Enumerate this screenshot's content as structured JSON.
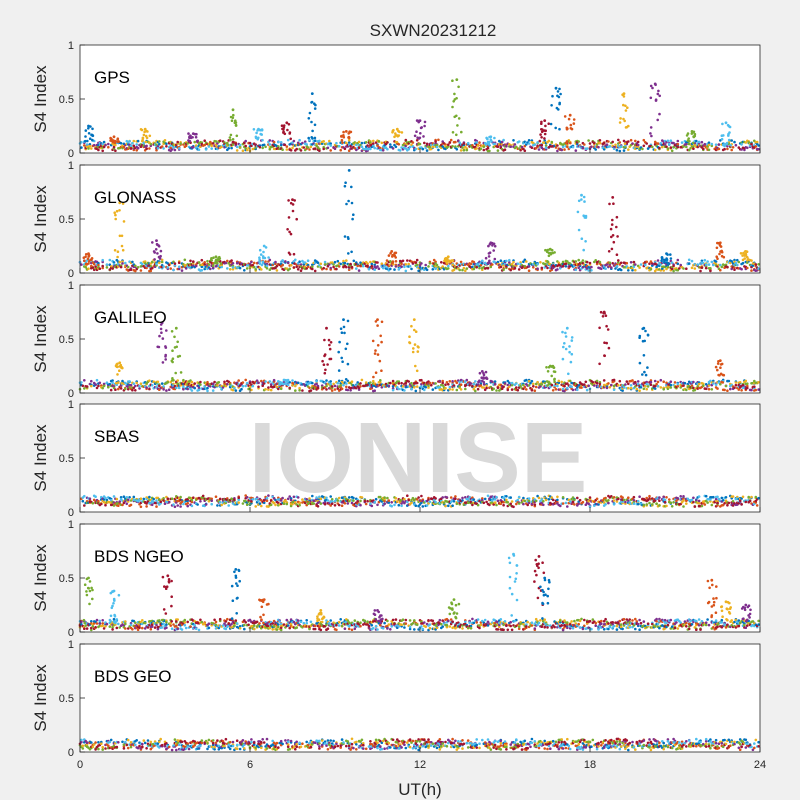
{
  "figure": {
    "title": "SXWN20231212",
    "xlabel": "UT(h)",
    "watermark": "IONISE"
  },
  "colors": {
    "background": "#f0f0f0",
    "axes_bg": "#ffffff",
    "axis_line": "#262626",
    "watermark": "#d9d9d9",
    "series": [
      "#0072BD",
      "#D95319",
      "#EDB120",
      "#7E2F8E",
      "#77AC30",
      "#4DBEEE",
      "#A2142F"
    ]
  },
  "chart_data": [
    {
      "type": "scatter",
      "panel_label": "GPS",
      "ylabel": "S4 Index",
      "xlim": [
        0,
        24
      ],
      "ylim": [
        0,
        1
      ],
      "xticks": [
        "0",
        "6",
        "12",
        "18",
        "24"
      ],
      "yticks": [
        "0",
        "0.5",
        "1"
      ],
      "baseline": 0.07,
      "spikes": [
        [
          0.3,
          0.25
        ],
        [
          1.2,
          0.15
        ],
        [
          2.3,
          0.22
        ],
        [
          4.0,
          0.18
        ],
        [
          5.4,
          0.4
        ],
        [
          6.3,
          0.22
        ],
        [
          7.3,
          0.28
        ],
        [
          8.2,
          0.55
        ],
        [
          9.4,
          0.2
        ],
        [
          11.2,
          0.22
        ],
        [
          12.0,
          0.3
        ],
        [
          13.3,
          0.68
        ],
        [
          14.5,
          0.15
        ],
        [
          16.4,
          0.3
        ],
        [
          16.8,
          0.6
        ],
        [
          17.3,
          0.35
        ],
        [
          19.2,
          0.55
        ],
        [
          20.3,
          0.64
        ],
        [
          21.6,
          0.2
        ],
        [
          22.8,
          0.28
        ]
      ]
    },
    {
      "type": "scatter",
      "panel_label": "GLONASS",
      "ylabel": "S4 Index",
      "xlim": [
        0,
        24
      ],
      "ylim": [
        0,
        1
      ],
      "xticks": [
        "0",
        "6",
        "12",
        "18",
        "24"
      ],
      "yticks": [
        "0",
        "0.5",
        "1"
      ],
      "baseline": 0.07,
      "spikes": [
        [
          0.3,
          0.18
        ],
        [
          1.4,
          0.65
        ],
        [
          2.7,
          0.3
        ],
        [
          4.8,
          0.15
        ],
        [
          6.5,
          0.25
        ],
        [
          7.5,
          0.68
        ],
        [
          9.5,
          0.95
        ],
        [
          11.0,
          0.2
        ],
        [
          13.0,
          0.15
        ],
        [
          14.5,
          0.28
        ],
        [
          16.6,
          0.22
        ],
        [
          17.7,
          0.72
        ],
        [
          18.8,
          0.7
        ],
        [
          20.7,
          0.18
        ],
        [
          22.6,
          0.28
        ],
        [
          23.5,
          0.2
        ]
      ]
    },
    {
      "type": "scatter",
      "panel_label": "GALILEO",
      "ylabel": "S4 Index",
      "xlim": [
        0,
        24
      ],
      "ylim": [
        0,
        1
      ],
      "xticks": [
        "0",
        "6",
        "12",
        "18",
        "24"
      ],
      "yticks": [
        "0",
        "0.5",
        "1"
      ],
      "baseline": 0.07,
      "spikes": [
        [
          1.4,
          0.28
        ],
        [
          2.9,
          0.65
        ],
        [
          3.4,
          0.6
        ],
        [
          7.2,
          0.12
        ],
        [
          8.7,
          0.6
        ],
        [
          9.3,
          0.68
        ],
        [
          10.5,
          0.68
        ],
        [
          11.8,
          0.68
        ],
        [
          14.2,
          0.2
        ],
        [
          16.6,
          0.25
        ],
        [
          17.2,
          0.6
        ],
        [
          18.5,
          0.75
        ],
        [
          19.9,
          0.6
        ],
        [
          22.6,
          0.3
        ]
      ]
    },
    {
      "type": "scatter",
      "panel_label": "SBAS",
      "ylabel": "S4 Index",
      "xlim": [
        0,
        24
      ],
      "ylim": [
        0,
        1
      ],
      "xticks": [
        "0",
        "6",
        "12",
        "18",
        "24"
      ],
      "yticks": [
        "0",
        "0.5",
        "1"
      ],
      "baseline": 0.1,
      "spikes": []
    },
    {
      "type": "scatter",
      "panel_label": "BDS NGEO",
      "ylabel": "S4 Index",
      "xlim": [
        0,
        24
      ],
      "ylim": [
        0,
        1
      ],
      "xticks": [
        "0",
        "6",
        "12",
        "18",
        "24"
      ],
      "yticks": [
        "0",
        "0.5",
        "1"
      ],
      "baseline": 0.07,
      "spikes": [
        [
          0.3,
          0.5
        ],
        [
          1.2,
          0.38
        ],
        [
          3.1,
          0.52
        ],
        [
          5.5,
          0.58
        ],
        [
          6.5,
          0.3
        ],
        [
          8.5,
          0.2
        ],
        [
          10.5,
          0.2
        ],
        [
          13.2,
          0.3
        ],
        [
          15.3,
          0.72
        ],
        [
          16.2,
          0.7
        ],
        [
          16.4,
          0.5
        ],
        [
          22.3,
          0.48
        ],
        [
          22.8,
          0.28
        ],
        [
          23.5,
          0.25
        ]
      ]
    },
    {
      "type": "scatter",
      "panel_label": "BDS GEO",
      "ylabel": "S4 Index",
      "xlim": [
        0,
        24
      ],
      "ylim": [
        0,
        1
      ],
      "xticks": [
        "0",
        "6",
        "12",
        "18",
        "24"
      ],
      "yticks": [
        "0",
        "0.5",
        "1"
      ],
      "baseline": 0.07,
      "spikes": []
    }
  ]
}
